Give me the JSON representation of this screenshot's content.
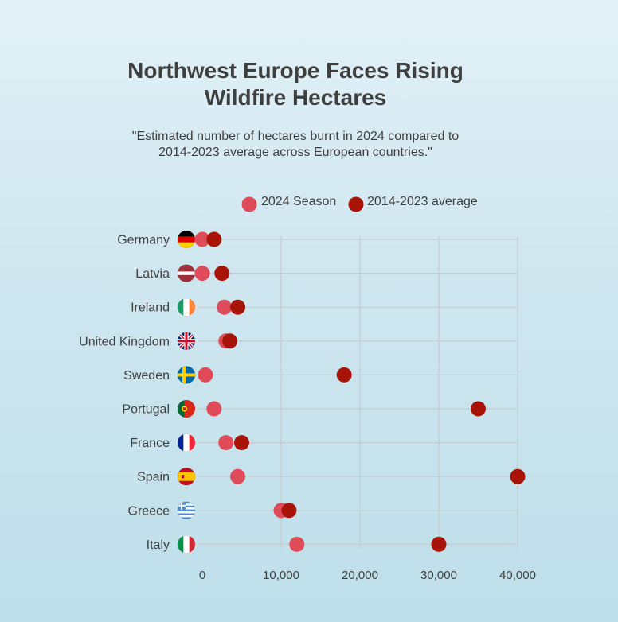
{
  "chart_data": {
    "type": "scatter",
    "title_lines": [
      "Northwest Europe Faces Rising",
      "Wildfire Hectares"
    ],
    "subtitle_lines": [
      "\"Estimated number of hectares burnt in 2024 compared to",
      "2014-2023 average across European countries.\""
    ],
    "categories": [
      "Germany",
      "Latvia",
      "Ireland",
      "United Kingdom",
      "Sweden",
      "Portugal",
      "France",
      "Spain",
      "Greece",
      "Italy"
    ],
    "series": [
      {
        "name": "2024 Season",
        "color": "#e04b5a",
        "values": [
          0,
          0,
          2800,
          3000,
          400,
          1500,
          3000,
          4500,
          10000,
          12000
        ]
      },
      {
        "name": "2014-2023 average",
        "color": "#a81508",
        "values": [
          1500,
          2500,
          4500,
          3500,
          18000,
          35000,
          5000,
          40000,
          11000,
          30000
        ]
      }
    ],
    "xlim": [
      0,
      40000
    ],
    "x_ticks": [
      0,
      10000,
      20000,
      30000,
      40000
    ],
    "x_tick_labels": [
      "0",
      "10,000",
      "20,000",
      "30,000",
      "40,000"
    ],
    "grid": true,
    "legend_position": "top",
    "flags": {
      "Germany": "flag-germany-icon",
      "Latvia": "flag-latvia-icon",
      "Ireland": "flag-ireland-icon",
      "United Kingdom": "flag-united-kingdom-icon",
      "Sweden": "flag-sweden-icon",
      "Portugal": "flag-portugal-icon",
      "France": "flag-france-icon",
      "Spain": "flag-spain-icon",
      "Greece": "flag-greece-icon",
      "Italy": "flag-italy-icon"
    }
  }
}
